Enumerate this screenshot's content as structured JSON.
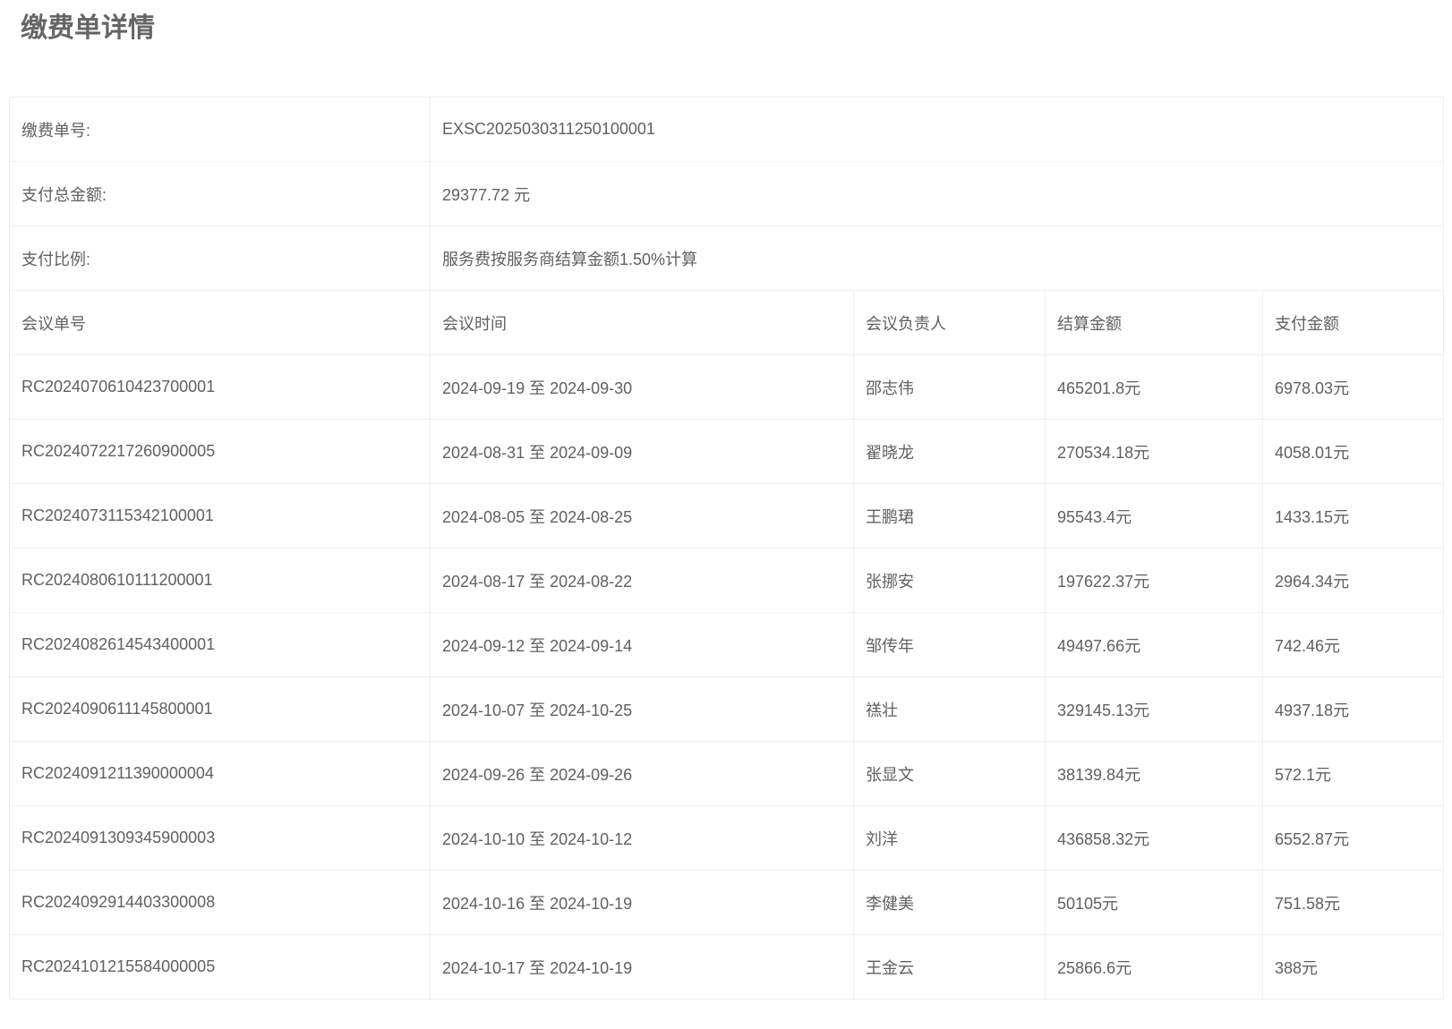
{
  "page": {
    "title": "缴费单详情"
  },
  "info": {
    "rows": [
      {
        "label": "缴费单号:",
        "value": "EXSC2025030311250100001"
      },
      {
        "label": "支付总金额:",
        "value": "29377.72 元"
      },
      {
        "label": "支付比例:",
        "value": "服务费按服务商结算金额1.50%计算"
      }
    ]
  },
  "table": {
    "columns": [
      "会议单号",
      "会议时间",
      "会议负责人",
      "结算金额",
      "支付金额"
    ],
    "rows": [
      [
        "RC2024070610423700001",
        "2024-09-19 至 2024-09-30",
        "邵志伟",
        "465201.8元",
        "6978.03元"
      ],
      [
        "RC2024072217260900005",
        "2024-08-31 至 2024-09-09",
        "翟晓龙",
        "270534.18元",
        "4058.01元"
      ],
      [
        "RC2024073115342100001",
        "2024-08-05 至 2024-08-25",
        "王鹏珺",
        "95543.4元",
        "1433.15元"
      ],
      [
        "RC2024080610111200001",
        "2024-08-17 至 2024-08-22",
        "张挪安",
        "197622.37元",
        "2964.34元"
      ],
      [
        "RC2024082614543400001",
        "2024-09-12 至 2024-09-14",
        "邹传年",
        "49497.66元",
        "742.46元"
      ],
      [
        "RC2024090611145800001",
        "2024-10-07 至 2024-10-25",
        "禚壮",
        "329145.13元",
        "4937.18元"
      ],
      [
        "RC2024091211390000004",
        "2024-09-26 至 2024-09-26",
        "张显文",
        "38139.84元",
        "572.1元"
      ],
      [
        "RC2024091309345900003",
        "2024-10-10 至 2024-10-12",
        "刘洋",
        "436858.32元",
        "6552.87元"
      ],
      [
        "RC2024092914403300008",
        "2024-10-16 至 2024-10-19",
        "李健美",
        "50105元",
        "751.58元"
      ],
      [
        "RC2024101215584000005",
        "2024-10-17 至 2024-10-19",
        "王金云",
        "25866.6元",
        "388元"
      ]
    ]
  },
  "colors": {
    "header_bg": "#f7f7f8",
    "border": "#eef0f2",
    "label_text": "#525252",
    "value_text": "#606060",
    "title_text": "#666666"
  }
}
